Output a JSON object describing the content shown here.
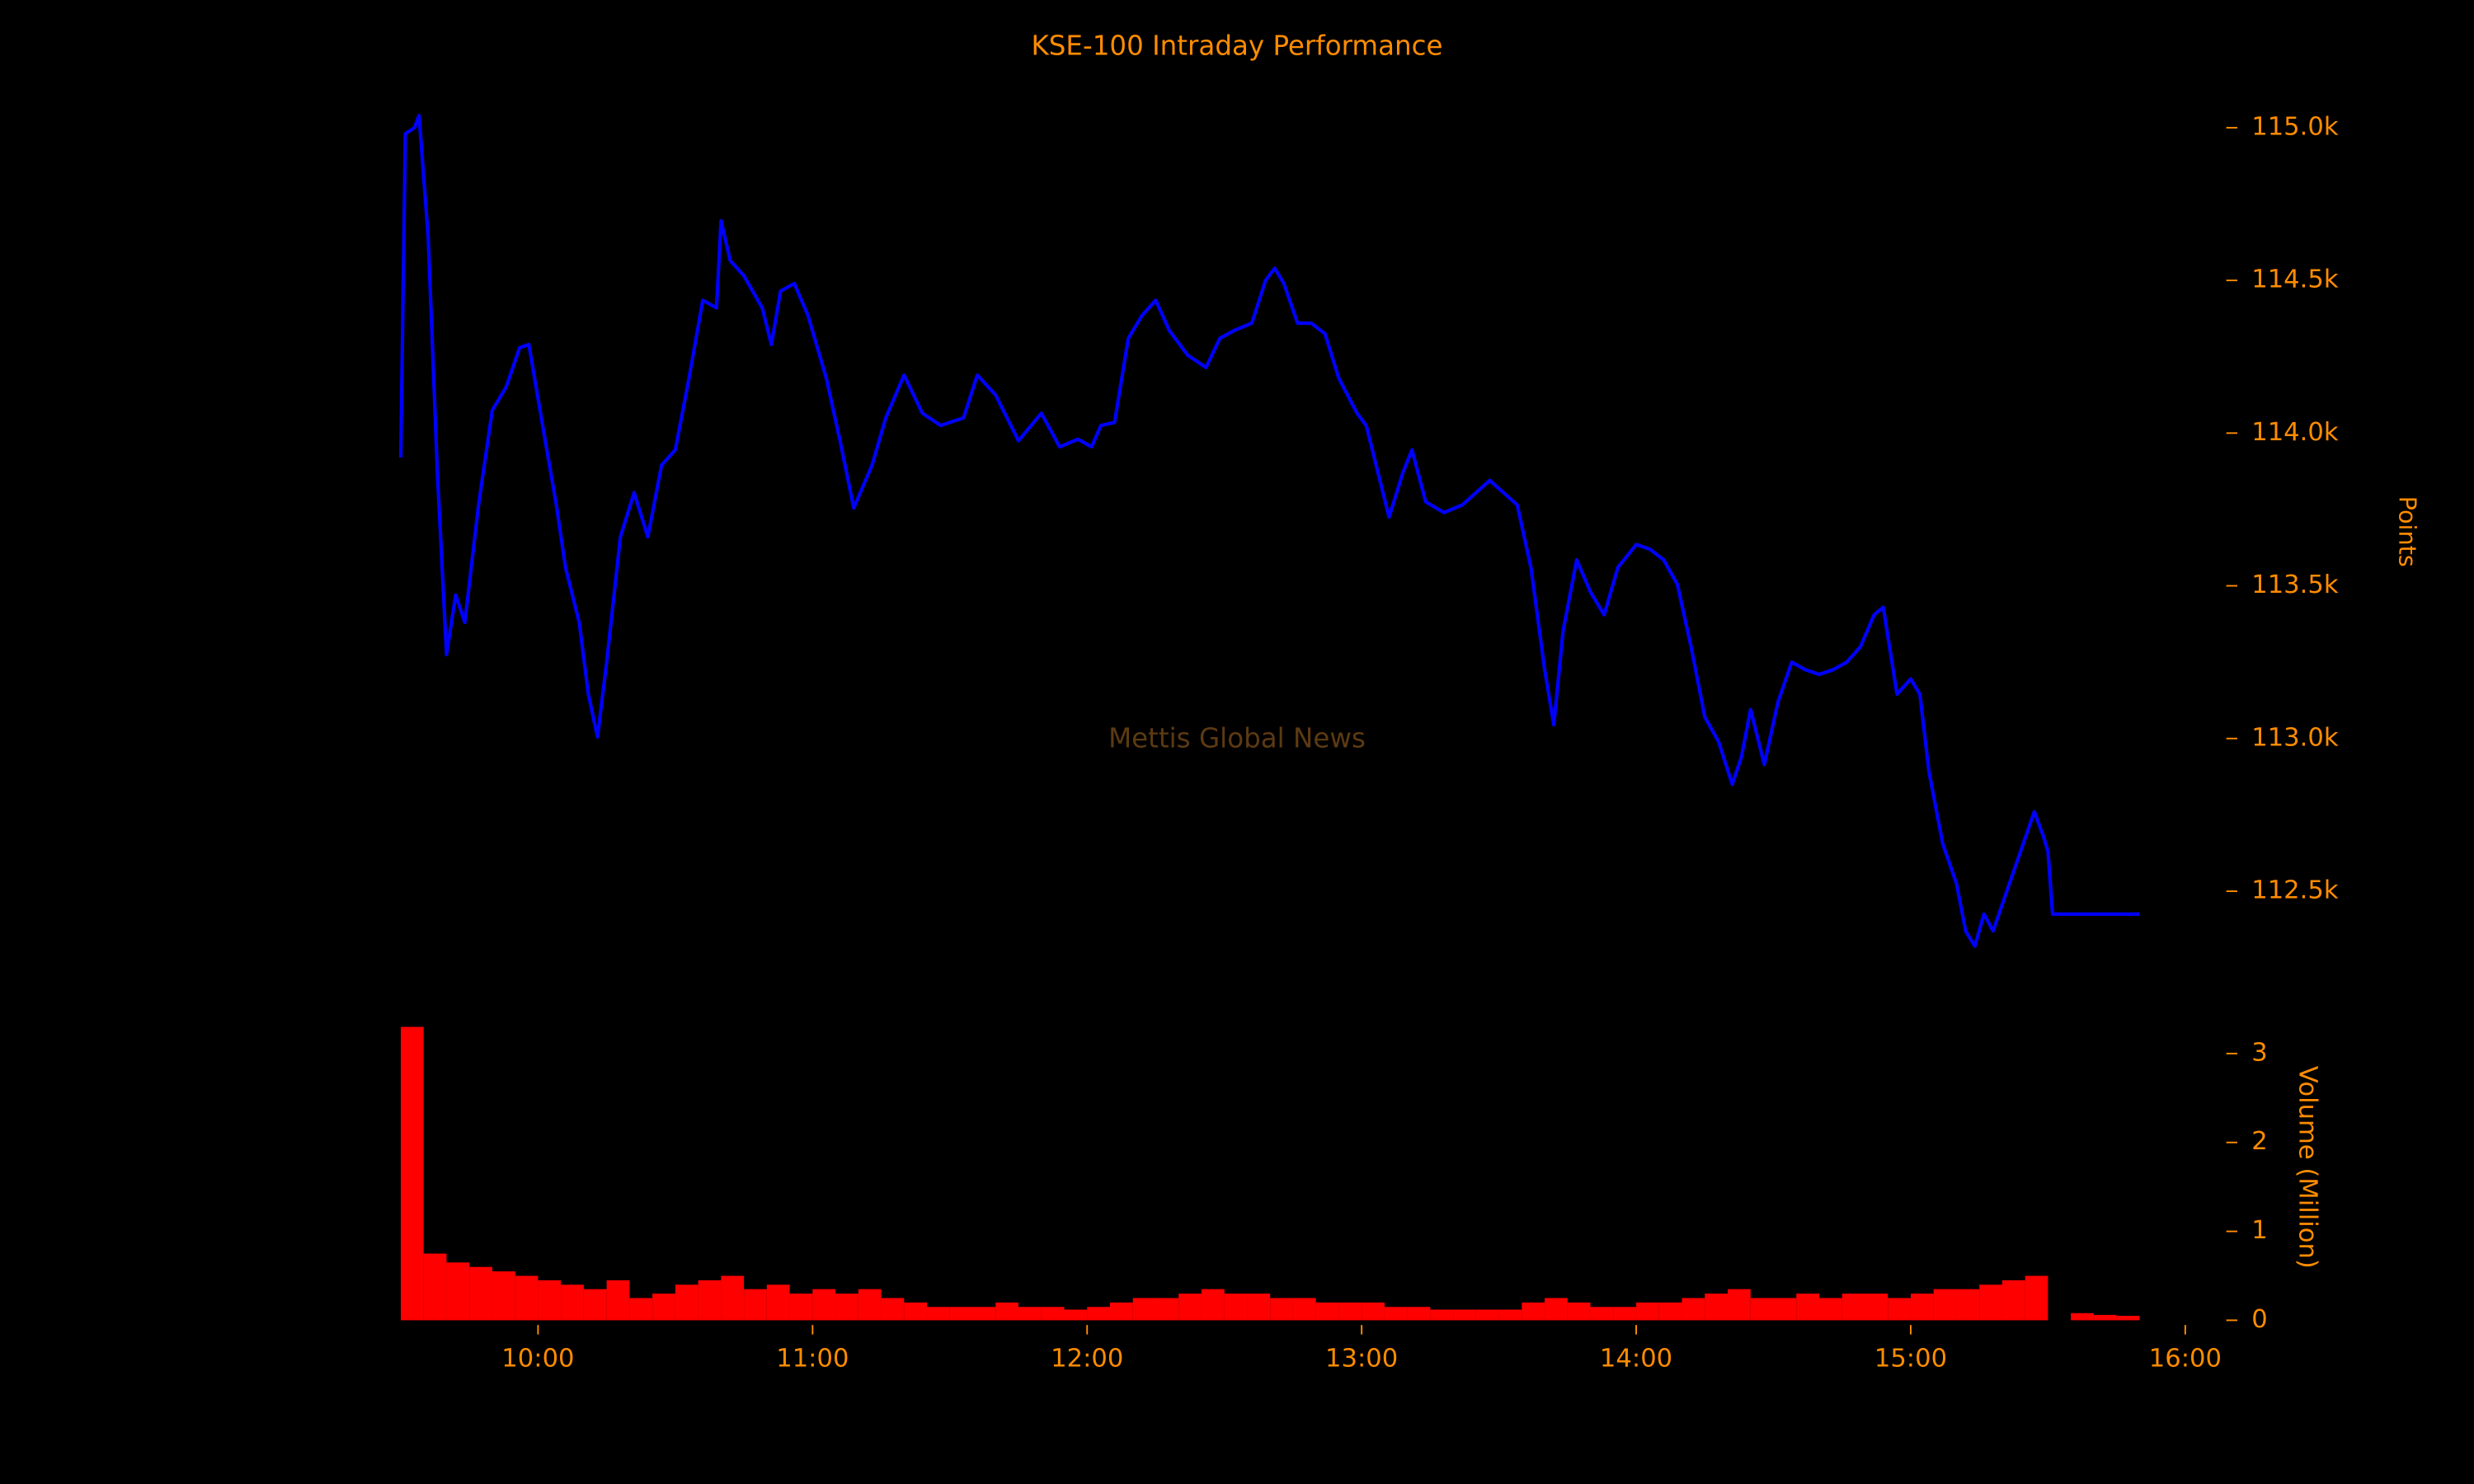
{
  "chart_data": {
    "type": "line",
    "title": "KSE-100 Intraday Performance",
    "watermark": "Mettis Global News",
    "y_label": "Points",
    "y2_label": "Volume (Million)",
    "text_color": "#ff8c00",
    "watermark_color": "#5c3a12",
    "background": "#000000",
    "xlim": [
      "09:30",
      "16:00"
    ],
    "xticks": [
      "10:00",
      "11:00",
      "12:00",
      "13:00",
      "14:00",
      "15:00",
      "16:00"
    ],
    "ylim": [
      112250,
      115100
    ],
    "yticks": [
      {
        "value": 112500,
        "label": "112.5k"
      },
      {
        "value": 113000,
        "label": "113.0k"
      },
      {
        "value": 113500,
        "label": "113.5k"
      },
      {
        "value": 114000,
        "label": "114.0k"
      },
      {
        "value": 114500,
        "label": "114.5k"
      },
      {
        "value": 115000,
        "label": "115.0k"
      }
    ],
    "y2lim": [
      0,
      3.3
    ],
    "y2ticks": [
      0,
      1,
      2,
      3
    ],
    "series": [
      {
        "name": "Points",
        "color": "#0000ff",
        "x": [
          "09:30",
          "09:31",
          "09:33",
          "09:34",
          "09:36",
          "09:38",
          "09:40",
          "09:42",
          "09:44",
          "09:47",
          "09:50",
          "09:53",
          "09:56",
          "09:58",
          "10:01",
          "10:04",
          "10:06",
          "10:09",
          "10:11",
          "10:13",
          "10:15",
          "10:18",
          "10:21",
          "10:24",
          "10:27",
          "10:30",
          "10:33",
          "10:36",
          "10:39",
          "10:40",
          "10:42",
          "10:45",
          "10:49",
          "10:51",
          "10:53",
          "10:56",
          "10:59",
          "11:03",
          "11:06",
          "11:09",
          "11:13",
          "11:16",
          "11:20",
          "11:24",
          "11:28",
          "11:33",
          "11:36",
          "11:40",
          "11:45",
          "11:50",
          "11:54",
          "11:58",
          "12:01",
          "12:03",
          "12:06",
          "12:09",
          "12:12",
          "12:15",
          "12:18",
          "12:22",
          "12:26",
          "12:29",
          "12:32",
          "12:36",
          "12:39",
          "12:41",
          "12:43",
          "12:46",
          "12:49",
          "12:52",
          "12:55",
          "12:59",
          "13:01",
          "13:04",
          "13:06",
          "13:09",
          "13:11",
          "13:14",
          "13:18",
          "13:22",
          "13:25",
          "13:28",
          "13:31",
          "13:34",
          "13:37",
          "13:40",
          "13:42",
          "13:44",
          "13:47",
          "13:50",
          "13:53",
          "13:56",
          "14:00",
          "14:03",
          "14:06",
          "14:09",
          "14:12",
          "14:15",
          "14:18",
          "14:21",
          "14:23",
          "14:25",
          "14:28",
          "14:31",
          "14:34",
          "14:37",
          "14:40",
          "14:43",
          "14:46",
          "14:49",
          "14:52",
          "14:54",
          "14:57",
          "15:00",
          "15:02",
          "15:04",
          "15:07",
          "15:10",
          "15:12",
          "15:14",
          "15:16",
          "15:18",
          "15:21",
          "15:24",
          "15:27",
          "15:29",
          "15:30",
          "15:31",
          "15:50"
        ],
        "values": [
          113920,
          114980,
          115000,
          115040,
          114640,
          113870,
          113275,
          113470,
          113380,
          113765,
          114075,
          114150,
          114280,
          114290,
          114025,
          113765,
          113560,
          113380,
          113145,
          113005,
          113250,
          113660,
          113805,
          113660,
          113895,
          113945,
          114180,
          114435,
          114410,
          114695,
          114565,
          114515,
          114410,
          114290,
          114465,
          114490,
          114385,
          114180,
          113975,
          113755,
          113895,
          114050,
          114190,
          114065,
          114025,
          114050,
          114190,
          114125,
          113975,
          114065,
          113955,
          113980,
          113955,
          114025,
          114035,
          114310,
          114385,
          114435,
          114335,
          114255,
          114215,
          114310,
          114335,
          114360,
          114500,
          114540,
          114490,
          114360,
          114360,
          114325,
          114180,
          114065,
          114025,
          113845,
          113725,
          113870,
          113945,
          113775,
          113740,
          113765,
          113805,
          113845,
          113805,
          113765,
          113560,
          113225,
          113045,
          113350,
          113585,
          113480,
          113405,
          113560,
          113635,
          113620,
          113585,
          113505,
          113300,
          113070,
          112990,
          112850,
          112940,
          113095,
          112915,
          113120,
          113250,
          113225,
          113210,
          113225,
          113250,
          113300,
          113405,
          113430,
          113145,
          113195,
          113145,
          112890,
          112655,
          112525,
          112370,
          112320,
          112425,
          112370,
          112500,
          112630,
          112760,
          112680,
          112630,
          112425,
          112425
        ]
      },
      {
        "name": "Volume (Million)",
        "color": "#ff0000",
        "axis": "y2",
        "type": "bar",
        "x": [
          "09:30",
          "09:35",
          "09:40",
          "09:45",
          "09:50",
          "09:55",
          "10:00",
          "10:05",
          "10:10",
          "10:15",
          "10:20",
          "10:25",
          "10:30",
          "10:35",
          "10:40",
          "10:45",
          "10:50",
          "10:55",
          "11:00",
          "11:05",
          "11:10",
          "11:15",
          "11:20",
          "11:25",
          "11:30",
          "11:35",
          "11:40",
          "11:45",
          "11:50",
          "11:55",
          "12:00",
          "12:05",
          "12:10",
          "12:15",
          "12:20",
          "12:25",
          "12:30",
          "12:35",
          "12:40",
          "12:45",
          "12:50",
          "12:55",
          "13:00",
          "13:05",
          "13:10",
          "13:15",
          "13:20",
          "13:25",
          "13:30",
          "13:35",
          "13:40",
          "13:45",
          "13:50",
          "13:55",
          "14:00",
          "14:05",
          "14:10",
          "14:15",
          "14:20",
          "14:25",
          "14:30",
          "14:35",
          "14:40",
          "14:45",
          "14:50",
          "14:55",
          "15:00",
          "15:05",
          "15:10",
          "15:15",
          "15:20",
          "15:25",
          "15:35",
          "15:40",
          "15:45"
        ],
        "values": [
          3.3,
          0.75,
          0.65,
          0.6,
          0.55,
          0.5,
          0.45,
          0.4,
          0.35,
          0.45,
          0.25,
          0.3,
          0.4,
          0.45,
          0.5,
          0.35,
          0.4,
          0.3,
          0.35,
          0.3,
          0.35,
          0.25,
          0.2,
          0.15,
          0.15,
          0.15,
          0.2,
          0.15,
          0.15,
          0.12,
          0.15,
          0.2,
          0.25,
          0.25,
          0.3,
          0.35,
          0.3,
          0.3,
          0.25,
          0.25,
          0.2,
          0.2,
          0.2,
          0.15,
          0.15,
          0.12,
          0.12,
          0.12,
          0.12,
          0.2,
          0.25,
          0.2,
          0.15,
          0.15,
          0.2,
          0.2,
          0.25,
          0.3,
          0.35,
          0.25,
          0.25,
          0.3,
          0.25,
          0.3,
          0.3,
          0.25,
          0.3,
          0.35,
          0.35,
          0.4,
          0.45,
          0.5,
          0.08,
          0.06,
          0.05
        ]
      }
    ]
  }
}
